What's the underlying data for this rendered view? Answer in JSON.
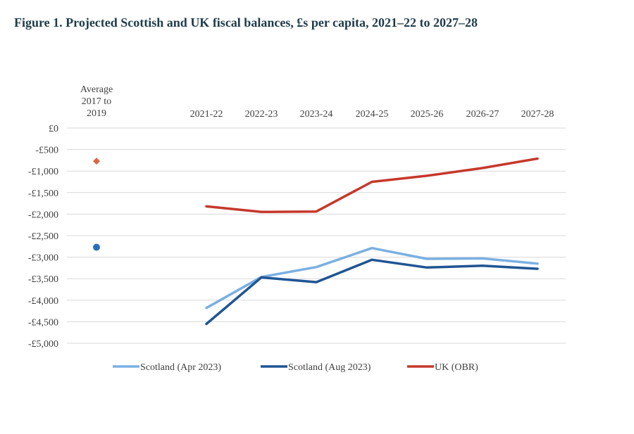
{
  "title": "Figure 1. Projected Scottish and UK fiscal balances, £s per capita, 2021–22 to 2027–28",
  "chart_data": {
    "type": "line",
    "categories": [
      "Average 2017 to 2019",
      "2021-22",
      "2022-23",
      "2023-24",
      "2024-25",
      "2025-26",
      "2026-27",
      "2027-28"
    ],
    "average_label_lines": [
      "Average",
      "2017 to",
      "2019"
    ],
    "y_ticks": [
      0,
      -500,
      -1000,
      -1500,
      -2000,
      -2500,
      -3000,
      -3500,
      -4000,
      -4500,
      -5000
    ],
    "y_tick_labels": [
      "£0",
      "-£500",
      "-£1,000",
      "-£1,500",
      "-£2,000",
      "-£2,500",
      "-£3,000",
      "-£3,500",
      "-£4,000",
      "-£4,500",
      "-£5,000"
    ],
    "ylim": [
      -5000,
      0
    ],
    "grid": true,
    "legend_position": "bottom",
    "series": [
      {
        "name": "Scotland (Apr 2023)",
        "color": "#7ab0e2",
        "values": [
          null,
          -4180,
          -3460,
          -3230,
          -2790,
          -3040,
          -3030,
          -3150
        ]
      },
      {
        "name": "Scotland (Aug 2023)",
        "color": "#1f5593",
        "values": [
          null,
          -4550,
          -3470,
          -3580,
          -3060,
          -3240,
          -3200,
          -3270
        ]
      },
      {
        "name": "UK (OBR)",
        "color": "#c6382b",
        "values": [
          null,
          -1820,
          -1950,
          -1940,
          -1250,
          -1110,
          -930,
          -710
        ]
      }
    ],
    "average_markers": [
      {
        "label": "UK average",
        "value": -770,
        "color": "#e06345",
        "shape": "diamond"
      },
      {
        "label": "Scotland average",
        "value": -2770,
        "color": "#2a6fbd",
        "shape": "circle"
      }
    ]
  }
}
